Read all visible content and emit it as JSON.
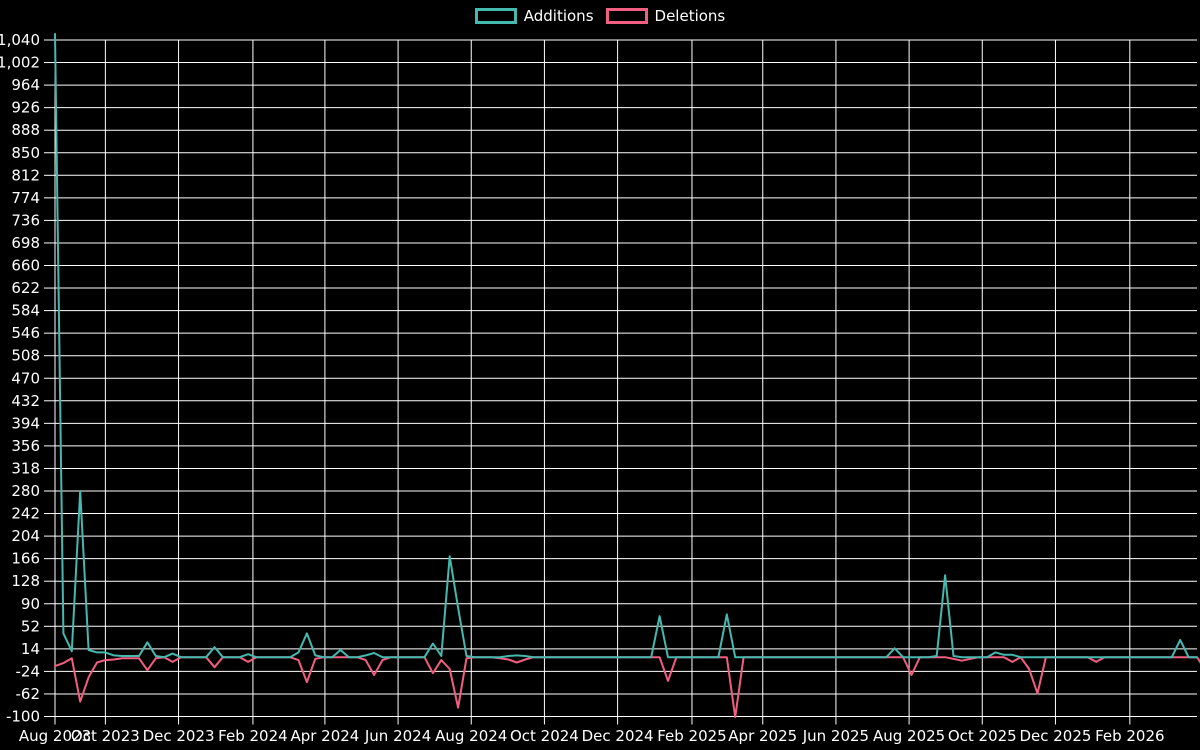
{
  "page": {
    "background_color": "#000000",
    "grid_color": "#ffffff",
    "text_color": "#ffffff"
  },
  "legend": {
    "items": [
      {
        "label": "Additions",
        "color": "#45b8b0"
      },
      {
        "label": "Deletions",
        "color": "#f25e80"
      }
    ]
  },
  "chart_data": {
    "type": "line",
    "grid": true,
    "legend_position": "top-center",
    "x_axis": {
      "unit": "weeks",
      "total_days": 952,
      "ticks": [
        {
          "label": "Aug 2023",
          "day": 0
        },
        {
          "label": "Oct 2023",
          "day": 42
        },
        {
          "label": "Dec 2023",
          "day": 103
        },
        {
          "label": "Feb 2024",
          "day": 165
        },
        {
          "label": "Apr 2024",
          "day": 225
        },
        {
          "label": "Jun 2024",
          "day": 286
        },
        {
          "label": "Aug 2024",
          "day": 347
        },
        {
          "label": "Oct 2024",
          "day": 408
        },
        {
          "label": "Dec 2024",
          "day": 469
        },
        {
          "label": "Feb 2025",
          "day": 531
        },
        {
          "label": "Apr 2025",
          "day": 590
        },
        {
          "label": "Jun 2025",
          "day": 651
        },
        {
          "label": "Aug 2025",
          "day": 712
        },
        {
          "label": "Oct 2025",
          "day": 773
        },
        {
          "label": "Dec 2025",
          "day": 834
        },
        {
          "label": "Feb 2026",
          "day": 896
        }
      ]
    },
    "y_axis": {
      "min": -100,
      "max": 1040,
      "tick_step": 38,
      "ticks": [
        -100,
        -62,
        -24,
        14,
        52,
        90,
        128,
        166,
        204,
        242,
        280,
        318,
        356,
        394,
        432,
        470,
        508,
        546,
        584,
        622,
        660,
        698,
        736,
        774,
        812,
        850,
        888,
        926,
        964,
        1002,
        1040
      ]
    },
    "series": [
      {
        "name": "Additions",
        "color": "#45b8b0",
        "values": [
          1050,
          40,
          10,
          280,
          12,
          8,
          8,
          3,
          2,
          2,
          2,
          25,
          2,
          0,
          6,
          0,
          0,
          0,
          0,
          17,
          0,
          0,
          0,
          5,
          0,
          0,
          0,
          0,
          0,
          8,
          40,
          3,
          0,
          0,
          12,
          0,
          0,
          3,
          7,
          0,
          0,
          0,
          0,
          0,
          0,
          23,
          2,
          170,
          83,
          2,
          0,
          0,
          0,
          0,
          2,
          3,
          2,
          0,
          0,
          0,
          0,
          0,
          0,
          0,
          0,
          0,
          0,
          0,
          0,
          0,
          0,
          0,
          69,
          0,
          0,
          0,
          0,
          0,
          0,
          0,
          72,
          0,
          0,
          0,
          0,
          0,
          0,
          0,
          0,
          0,
          0,
          0,
          0,
          0,
          0,
          0,
          0,
          0,
          0,
          0,
          15,
          0,
          0,
          0,
          0,
          2,
          138,
          2,
          0,
          0,
          0,
          0,
          8,
          4,
          4,
          0,
          0,
          0,
          0,
          0,
          0,
          0,
          0,
          0,
          0,
          0,
          0,
          0,
          0,
          0,
          0,
          0,
          0,
          0,
          29,
          0,
          0
        ]
      },
      {
        "name": "Deletions",
        "color": "#f25e80",
        "values": [
          -15,
          -10,
          -2,
          -75,
          -34,
          -9,
          -5,
          -4,
          -2,
          -2,
          -2,
          -22,
          -2,
          0,
          -8,
          0,
          0,
          0,
          0,
          -17,
          0,
          0,
          0,
          -8,
          0,
          0,
          0,
          0,
          0,
          -5,
          -42,
          -3,
          0,
          0,
          0,
          0,
          0,
          -5,
          -30,
          -5,
          0,
          0,
          0,
          0,
          0,
          -27,
          -5,
          -20,
          -85,
          -2,
          0,
          0,
          0,
          -2,
          -4,
          -9,
          -4,
          0,
          0,
          0,
          0,
          0,
          0,
          0,
          0,
          0,
          0,
          0,
          0,
          0,
          0,
          0,
          0,
          -40,
          0,
          0,
          0,
          0,
          0,
          0,
          0,
          -101,
          0,
          0,
          0,
          0,
          0,
          0,
          0,
          0,
          0,
          0,
          0,
          0,
          0,
          0,
          0,
          0,
          0,
          0,
          0,
          0,
          -30,
          0,
          0,
          0,
          0,
          -3,
          -6,
          -3,
          0,
          0,
          0,
          0,
          -8,
          0,
          -20,
          -61,
          0,
          0,
          0,
          0,
          0,
          0,
          -8,
          0,
          0,
          0,
          0,
          0,
          0,
          0,
          0,
          0,
          0,
          0,
          0,
          -22,
          0,
          0
        ]
      }
    ]
  }
}
